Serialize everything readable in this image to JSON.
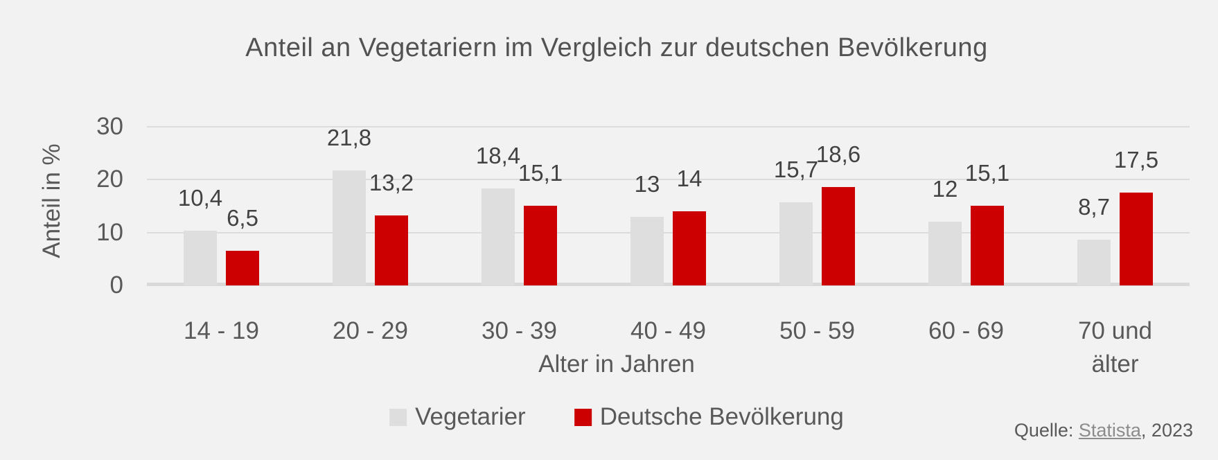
{
  "title": "Anteil an Vegetariern im Vergleich zur deutschen Bevölkerung",
  "chart_data": {
    "type": "bar",
    "categories": [
      "14 - 19",
      "20 - 29",
      "30 - 39",
      "40 - 49",
      "50 - 59",
      "60 - 69",
      "70 und älter"
    ],
    "series": [
      {
        "key": "vegetarier",
        "name": "Vegetarier",
        "color": "#dedede",
        "values": [
          10.4,
          21.8,
          18.4,
          13,
          15.7,
          12,
          8.7
        ]
      },
      {
        "key": "deutsche-bevoelkerung",
        "name": "Deutsche Bevölkerung",
        "color": "#cc0000",
        "values": [
          6.5,
          13.2,
          15.1,
          14,
          18.6,
          15.1,
          17.5
        ]
      }
    ],
    "ylabel": "Anteil in %",
    "xlabel": "Alter in Jahren",
    "yticks": [
      0,
      10,
      20,
      30
    ],
    "ylim": [
      0,
      30
    ],
    "grid": true,
    "legend_position": "bottom",
    "decimal_separator": ",",
    "background_color": "#f2f2f2",
    "gridline_color": "#dcdcdc",
    "axis_line_color": "#d9d9d9",
    "text_color": "#595959"
  },
  "legend": {
    "items": [
      {
        "label": "Vegetarier",
        "color": "#dedede"
      },
      {
        "label": "Deutsche Bevölkerung",
        "color": "#cc0000"
      }
    ]
  },
  "source": {
    "prefix": "Quelle: ",
    "link": "Statista",
    "suffix": ", 2023"
  }
}
